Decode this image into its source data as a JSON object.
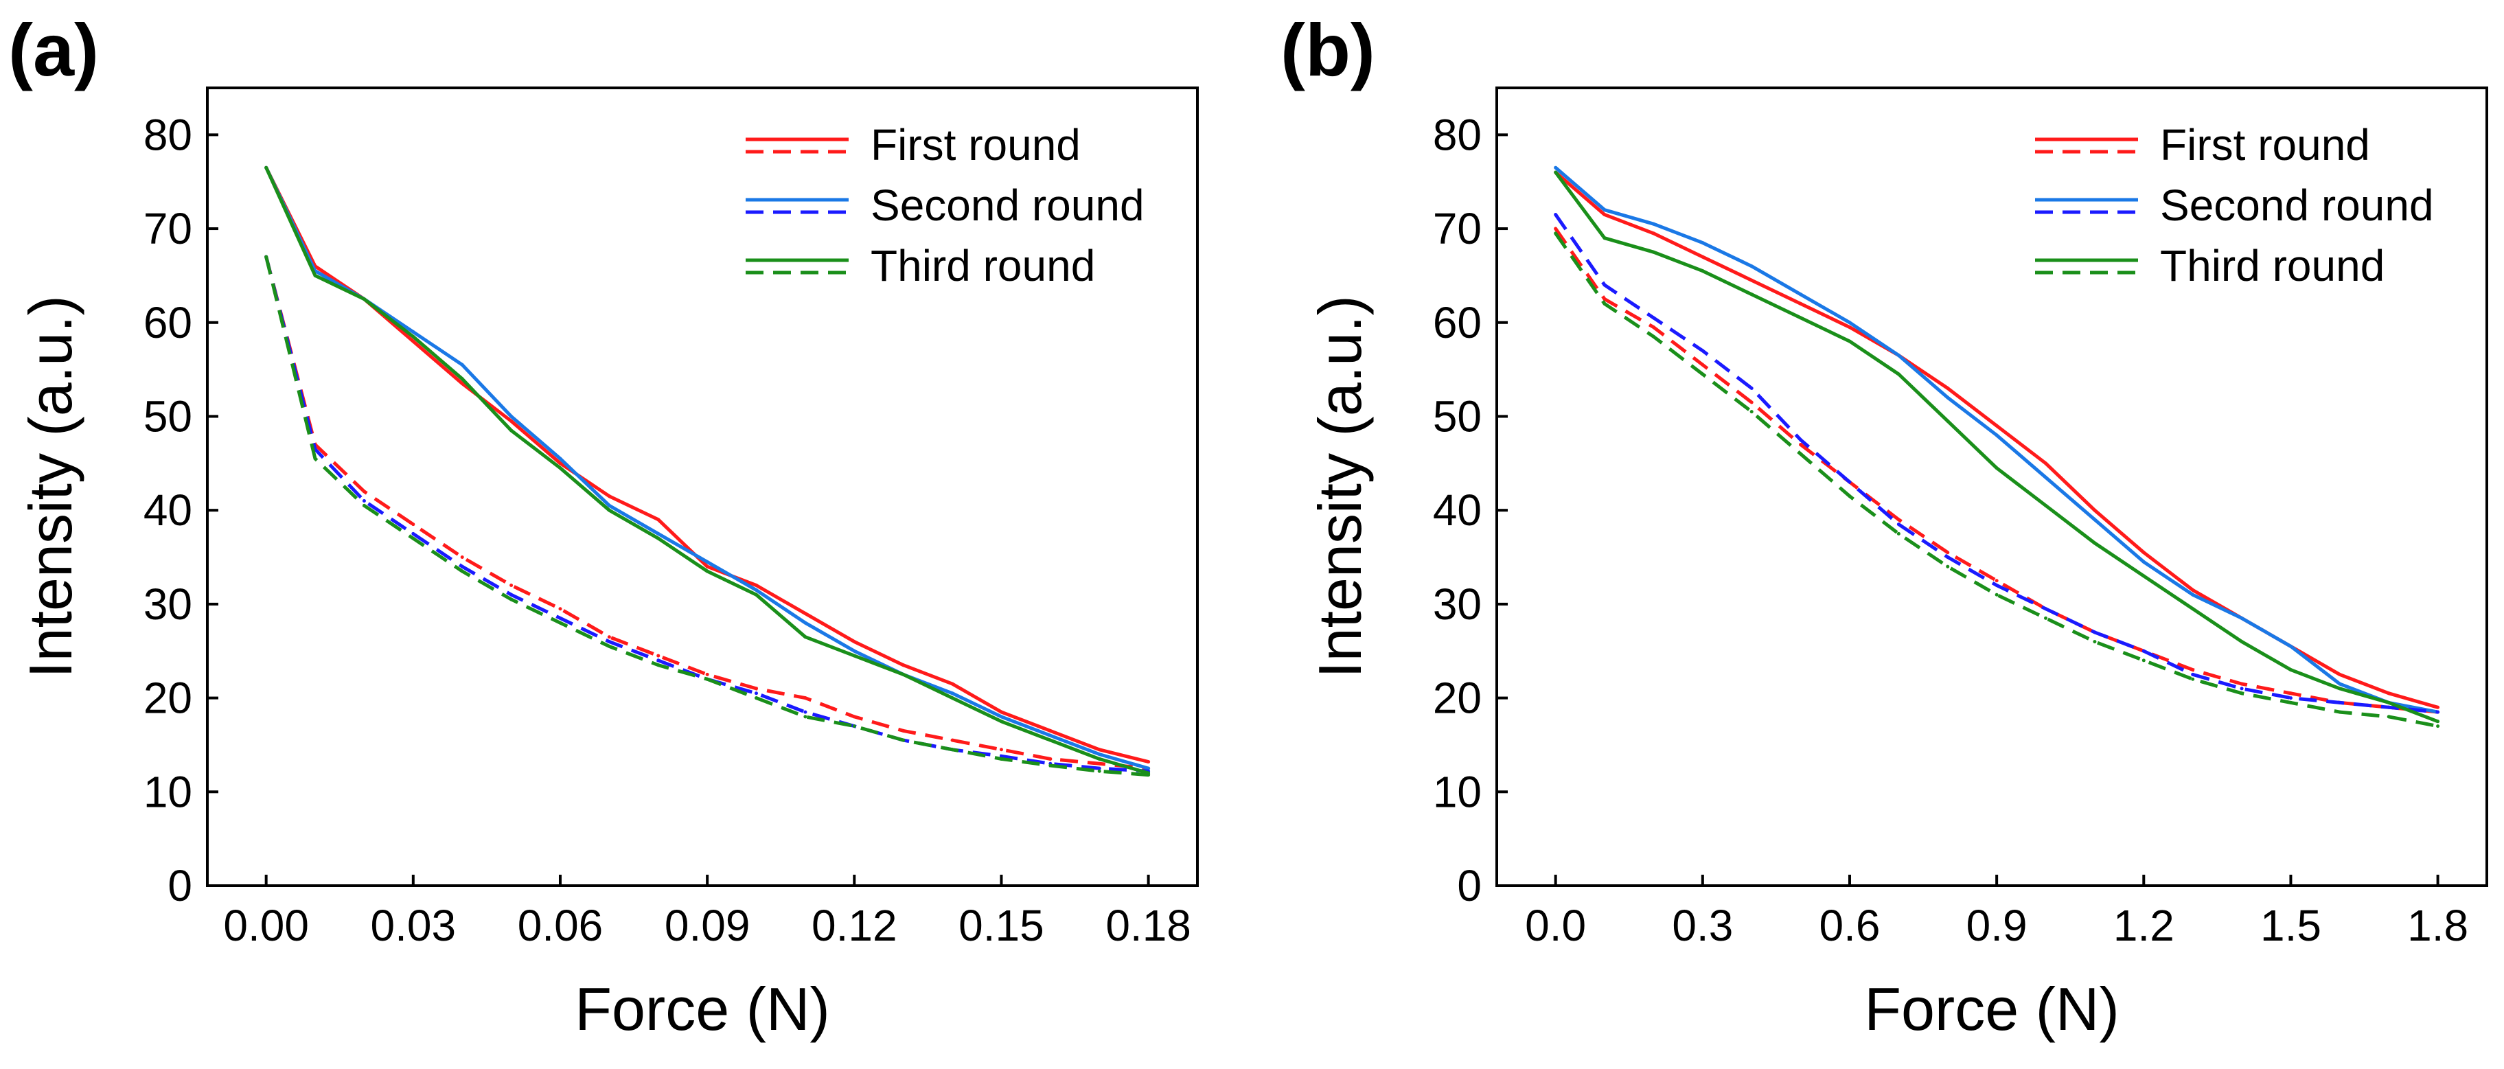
{
  "chart_data": [
    {
      "panel_label": "(a)",
      "type": "line",
      "xlabel": "Force (N)",
      "ylabel": "Intensity (a.u.)",
      "xlim": [
        -0.012,
        0.19
      ],
      "ylim": [
        0,
        85
      ],
      "xticks": [
        0.0,
        0.03,
        0.06,
        0.09,
        0.12,
        0.15,
        0.18
      ],
      "xtick_labels": [
        "0.00",
        "0.03",
        "0.06",
        "0.09",
        "0.12",
        "0.15",
        "0.18"
      ],
      "yticks": [
        0,
        10,
        20,
        30,
        40,
        50,
        60,
        70,
        80
      ],
      "ytick_labels": [
        "0",
        "10",
        "20",
        "30",
        "40",
        "50",
        "60",
        "70",
        "80"
      ],
      "legend": {
        "placement": "top-right",
        "entries": [
          "First round",
          "Second round",
          "Third round"
        ]
      },
      "x": [
        0.0,
        0.01,
        0.02,
        0.03,
        0.04,
        0.05,
        0.06,
        0.07,
        0.08,
        0.09,
        0.1,
        0.11,
        0.12,
        0.13,
        0.14,
        0.15,
        0.16,
        0.17,
        0.18
      ],
      "series": [
        {
          "name": "First round",
          "style": "solid",
          "color": "#ff1a1a",
          "values": [
            76.5,
            66.0,
            62.5,
            58.0,
            53.5,
            49.5,
            45.0,
            41.5,
            39.0,
            34.0,
            32.0,
            29.0,
            26.0,
            23.5,
            21.5,
            18.5,
            16.5,
            14.5,
            13.2
          ]
        },
        {
          "name": "First round",
          "style": "dashed",
          "color": "#ff1a1a",
          "values": [
            67.0,
            47.0,
            42.0,
            38.5,
            35.0,
            32.0,
            29.5,
            26.5,
            24.5,
            22.5,
            21.0,
            20.0,
            18.0,
            16.5,
            15.5,
            14.5,
            13.5,
            13.0,
            12.5
          ]
        },
        {
          "name": "Second round",
          "style": "solid",
          "color": "#1a78e6",
          "values": [
            76.5,
            65.5,
            62.5,
            59.0,
            55.5,
            50.0,
            45.5,
            40.5,
            37.5,
            34.5,
            31.5,
            28.0,
            25.0,
            22.5,
            20.5,
            18.0,
            16.0,
            14.0,
            12.5
          ]
        },
        {
          "name": "Second round",
          "style": "dashed",
          "color": "#1a1aff",
          "values": [
            67.0,
            46.5,
            41.0,
            37.5,
            34.0,
            31.0,
            28.5,
            26.0,
            24.0,
            22.0,
            20.5,
            18.5,
            17.0,
            15.5,
            14.5,
            13.8,
            13.0,
            12.5,
            12.2
          ]
        },
        {
          "name": "Third round",
          "style": "solid",
          "color": "#1a8f1a",
          "values": [
            76.5,
            65.0,
            62.5,
            58.5,
            54.0,
            48.5,
            44.5,
            40.0,
            37.0,
            33.5,
            31.0,
            26.5,
            24.5,
            22.5,
            20.0,
            17.5,
            15.5,
            13.5,
            12.0
          ]
        },
        {
          "name": "Third round",
          "style": "dashed",
          "color": "#1a8f1a",
          "values": [
            67.0,
            45.5,
            40.5,
            37.0,
            33.5,
            30.5,
            28.0,
            25.5,
            23.5,
            22.0,
            20.0,
            18.0,
            17.0,
            15.5,
            14.5,
            13.5,
            12.8,
            12.2,
            11.8
          ]
        }
      ]
    },
    {
      "panel_label": "(b)",
      "type": "line",
      "xlabel": "Force (N)",
      "ylabel": "Intensity (a.u.)",
      "xlim": [
        -0.12,
        1.9
      ],
      "ylim": [
        0,
        85
      ],
      "xticks": [
        0.0,
        0.3,
        0.6,
        0.9,
        1.2,
        1.5,
        1.8
      ],
      "xtick_labels": [
        "0.0",
        "0.3",
        "0.6",
        "0.9",
        "1.2",
        "1.5",
        "1.8"
      ],
      "yticks": [
        0,
        10,
        20,
        30,
        40,
        50,
        60,
        70,
        80
      ],
      "ytick_labels": [
        "0",
        "10",
        "20",
        "30",
        "40",
        "50",
        "60",
        "70",
        "80"
      ],
      "legend": {
        "placement": "top-right",
        "entries": [
          "First round",
          "Second round",
          "Third round"
        ]
      },
      "x": [
        0.0,
        0.1,
        0.2,
        0.3,
        0.4,
        0.5,
        0.6,
        0.7,
        0.8,
        0.9,
        1.0,
        1.1,
        1.2,
        1.3,
        1.4,
        1.5,
        1.6,
        1.7,
        1.8
      ],
      "series": [
        {
          "name": "First round",
          "style": "solid",
          "color": "#ff1a1a",
          "values": [
            76.0,
            71.5,
            69.5,
            67.0,
            64.5,
            62.0,
            59.5,
            56.5,
            53.0,
            49.0,
            45.0,
            40.0,
            35.5,
            31.5,
            28.5,
            25.5,
            22.5,
            20.5,
            19.0
          ]
        },
        {
          "name": "First round",
          "style": "dashed",
          "color": "#ff1a1a",
          "values": [
            70.0,
            62.5,
            59.5,
            55.5,
            51.5,
            47.0,
            43.0,
            39.0,
            35.5,
            32.5,
            29.5,
            27.0,
            25.0,
            23.0,
            21.5,
            20.5,
            19.5,
            19.0,
            18.5
          ]
        },
        {
          "name": "Second round",
          "style": "solid",
          "color": "#1a78e6",
          "values": [
            76.5,
            72.0,
            70.5,
            68.5,
            66.0,
            63.0,
            60.0,
            56.5,
            52.0,
            48.0,
            43.5,
            39.0,
            34.5,
            31.0,
            28.5,
            25.5,
            21.5,
            19.5,
            18.5
          ]
        },
        {
          "name": "Second round",
          "style": "dashed",
          "color": "#1a1aff",
          "values": [
            71.5,
            64.0,
            60.5,
            57.0,
            53.0,
            47.5,
            43.0,
            38.5,
            35.0,
            32.0,
            29.5,
            27.0,
            25.0,
            22.5,
            21.0,
            20.0,
            19.5,
            19.0,
            18.5
          ]
        },
        {
          "name": "Third round",
          "style": "solid",
          "color": "#1a8f1a",
          "values": [
            76.0,
            69.0,
            67.5,
            65.5,
            63.0,
            60.5,
            58.0,
            54.5,
            49.5,
            44.5,
            40.5,
            36.5,
            33.0,
            29.5,
            26.0,
            23.0,
            21.0,
            19.5,
            17.5
          ]
        },
        {
          "name": "Third round",
          "style": "dashed",
          "color": "#1a8f1a",
          "values": [
            69.5,
            62.0,
            58.5,
            54.5,
            50.5,
            46.0,
            41.5,
            37.5,
            34.0,
            31.0,
            28.5,
            26.0,
            24.0,
            22.0,
            20.5,
            19.5,
            18.5,
            18.0,
            17.0
          ]
        }
      ]
    }
  ]
}
